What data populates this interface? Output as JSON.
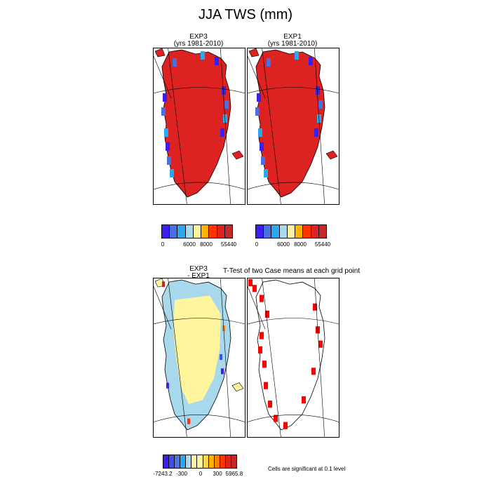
{
  "title": "JJA TWS (mm)",
  "panels": {
    "exp3": {
      "name": "EXP3",
      "subtitle": "(yrs 1981-2010)"
    },
    "exp1": {
      "name": "EXP1",
      "subtitle": "(yrs 1981-2010)"
    },
    "diff": {
      "name": "EXP3",
      "subtitle": "- EXP1"
    },
    "ttest": {
      "title": "T-Test of two Case means at each grid point"
    }
  },
  "colorbar_top": {
    "colors": [
      "#3a1ff0",
      "#4a6fe0",
      "#2aa8f0",
      "#a8d8ec",
      "#fff59d",
      "#ffb300",
      "#ff3300",
      "#dd2222",
      "#c62828"
    ],
    "labels": [
      "0",
      "6000",
      "8000",
      "55440"
    ]
  },
  "colorbar_bottom": {
    "colors": [
      "#3a1ff0",
      "#3a50e8",
      "#4a78e0",
      "#2aa8f0",
      "#a8d8ec",
      "#fff59d",
      "#fff59d",
      "#ffd54f",
      "#ffb300",
      "#ff7f00",
      "#ff3300",
      "#dd2222",
      "#c62828"
    ],
    "labels": [
      "-7243.2",
      "-300",
      "0",
      "300",
      "5965.8"
    ]
  },
  "significance_note": "Cells are significant at 0.1 level",
  "chart_data": [
    {
      "type": "heatmap",
      "title": "EXP3",
      "subtitle": "(yrs 1981-2010)",
      "levels": [
        0,
        6000,
        8000,
        55440
      ],
      "dominant_value": "above 8000"
    },
    {
      "type": "heatmap",
      "title": "EXP1",
      "subtitle": "(yrs 1981-2010)",
      "levels": [
        0,
        6000,
        8000,
        55440
      ],
      "dominant_value": "above 8000"
    },
    {
      "type": "heatmap",
      "title": "EXP3 - EXP1",
      "levels": [
        -7243.2,
        -300,
        0,
        300,
        5965.8
      ],
      "dominant_value": "near 0"
    },
    {
      "type": "heatmap",
      "title": "T-Test of two Case means at each grid point",
      "note": "Cells are significant at 0.1 level"
    }
  ]
}
